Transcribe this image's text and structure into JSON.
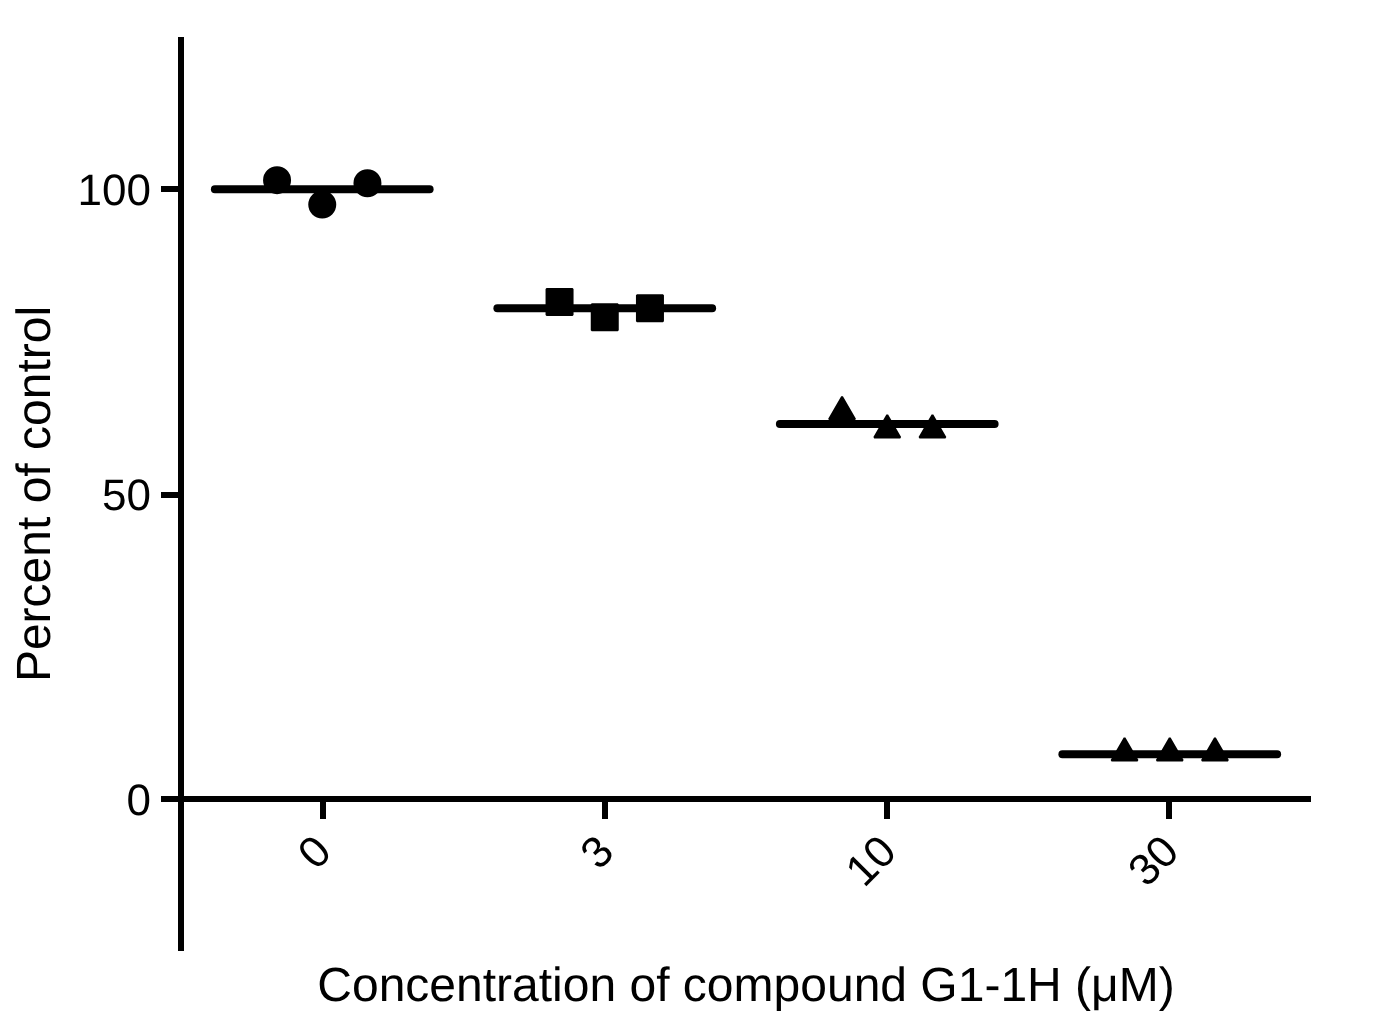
{
  "chart_data": {
    "type": "scatter",
    "xlabel": "Concentration of compound G1-1H (μM)",
    "ylabel": "Percent of control",
    "categories": [
      "0",
      "3",
      "10",
      "30"
    ],
    "ylim": [
      -25,
      125
    ],
    "yticks": [
      0,
      50,
      100
    ],
    "grid": false,
    "series": [
      {
        "type": "scatter",
        "marker": "circle",
        "color": "#000000",
        "x": [
          "0",
          "0",
          "0"
        ],
        "values": [
          101.5,
          97.5,
          101
        ]
      },
      {
        "type": "scatter",
        "marker": "square",
        "color": "#000000",
        "x": [
          "3",
          "3",
          "3"
        ],
        "values": [
          81.5,
          79,
          80.5
        ]
      },
      {
        "type": "scatter",
        "marker": "triangle",
        "color": "#000000",
        "x": [
          "10",
          "10",
          "10"
        ],
        "values": [
          63.5,
          60.5,
          60.5
        ]
      },
      {
        "type": "scatter",
        "marker": "triangle",
        "color": "#000000",
        "x": [
          "30",
          "30",
          "30"
        ],
        "values": [
          7.5,
          7.5,
          7.5
        ]
      },
      {
        "type": "box",
        "color": "#000000",
        "boxes": [
          {
            "low": 100,
            "q1": 100,
            "median": 100,
            "q3": 100,
            "high": 100
          },
          {
            "low": 80.5,
            "q1": 80.5,
            "median": 80.5,
            "q3": 80.5,
            "high": 80.5
          },
          {
            "low": 61.5,
            "q1": 61.5,
            "median": 61.5,
            "q3": 61.5,
            "high": 61.5
          },
          {
            "low": 7.3,
            "q1": 7.3,
            "median": 7.3,
            "q3": 7.3,
            "high": 7.3
          }
        ]
      }
    ]
  }
}
